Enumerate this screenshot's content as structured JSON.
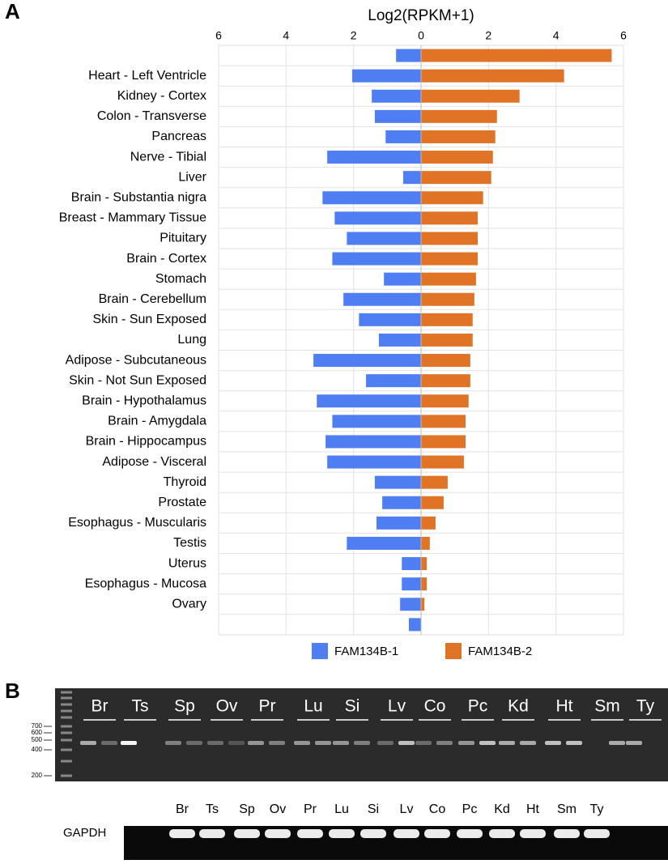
{
  "panel_labels": [
    "A",
    "B"
  ],
  "chart_data": {
    "type": "diverging-bar",
    "title": "Log2(RPKM+1)",
    "categories": [
      null,
      "Heart - Left Ventricle",
      "Kidney - Cortex",
      "Colon - Transverse",
      "Pancreas",
      "Nerve - Tibial",
      "Liver",
      "Brain - Substantia nigra",
      "Breast - Mammary Tissue",
      "Pituitary",
      "Brain - Cortex",
      "Stomach",
      "Brain - Cerebellum",
      "Skin - Sun Exposed",
      "Lung",
      "Adipose - Subcutaneous",
      "Skin - Not Sun Exposed",
      "Brain - Hypothalamus",
      "Brain - Amygdala",
      "Brain - Hippocampus",
      "Adipose - Visceral",
      "Thyroid",
      "Prostate",
      "Esophagus - Muscularis",
      "Testis",
      "Uterus",
      "Esophagus - Mucosa",
      "Ovary",
      null
    ],
    "series": [
      {
        "name": "FAM134B-1",
        "color": "#4f7ef2",
        "side": "left",
        "values": [
          0.74,
          2.04,
          1.46,
          1.37,
          1.05,
          2.78,
          0.53,
          2.92,
          2.56,
          2.2,
          2.63,
          1.1,
          2.3,
          1.84,
          1.25,
          3.19,
          1.63,
          3.09,
          2.63,
          2.83,
          2.78,
          1.37,
          1.15,
          1.32,
          2.2,
          0.57,
          0.57,
          0.62,
          0.36
        ]
      },
      {
        "name": "FAM134B-2",
        "color": "#e07325",
        "side": "right",
        "values": [
          5.65,
          4.24,
          2.92,
          2.25,
          2.2,
          2.13,
          2.08,
          1.84,
          1.68,
          1.68,
          1.68,
          1.63,
          1.58,
          1.53,
          1.53,
          1.46,
          1.46,
          1.41,
          1.32,
          1.32,
          1.27,
          0.79,
          0.67,
          0.43,
          0.26,
          0.17,
          0.17,
          0.1,
          0
        ]
      }
    ],
    "xlim": [
      -6,
      6
    ],
    "xticks": [
      {
        "value": -6,
        "label": "6"
      },
      {
        "value": -4,
        "label": "4"
      },
      {
        "value": -2,
        "label": "2"
      },
      0,
      2,
      4,
      6
    ],
    "grid": true
  },
  "gel": {
    "ladder": [
      700,
      600,
      500,
      400,
      200
    ],
    "lanes": [
      "Br",
      "Ts",
      "Sp",
      "Ov",
      "Pr",
      "Lu",
      "Si",
      "Lv",
      "Co",
      "Pc",
      "Kd",
      "Ht",
      "Sm",
      "Ty"
    ],
    "control_label": "GAPDH"
  }
}
